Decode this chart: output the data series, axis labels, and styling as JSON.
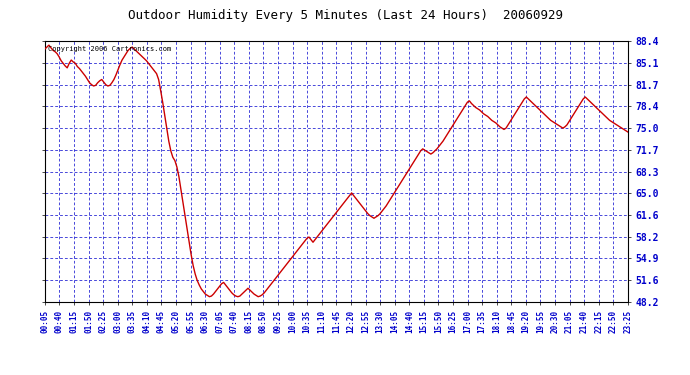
{
  "title": "Outdoor Humidity Every 5 Minutes (Last 24 Hours)  20060929",
  "copyright_text": "Copyright 2006 Cartronics.com",
  "background_color": "#ffffff",
  "plot_bg_color": "#ffffff",
  "line_color": "#cc0000",
  "grid_color": "#0000cc",
  "ytick_values": [
    48.2,
    51.6,
    54.9,
    58.2,
    61.6,
    65.0,
    68.3,
    71.7,
    75.0,
    78.4,
    81.7,
    85.1,
    88.4
  ],
  "ylim": [
    48.2,
    88.4
  ],
  "xtick_labels": [
    "00:05",
    "00:40",
    "01:15",
    "01:50",
    "02:25",
    "03:00",
    "03:35",
    "04:10",
    "04:45",
    "05:20",
    "05:55",
    "06:30",
    "07:05",
    "07:40",
    "08:15",
    "08:50",
    "09:25",
    "10:00",
    "10:35",
    "11:10",
    "11:45",
    "12:20",
    "12:55",
    "13:30",
    "14:05",
    "14:40",
    "15:15",
    "15:50",
    "16:25",
    "17:00",
    "17:35",
    "18:10",
    "18:45",
    "19:20",
    "19:55",
    "20:30",
    "21:05",
    "21:40",
    "22:15",
    "22:50",
    "23:25"
  ],
  "humidity": [
    87.2,
    87.5,
    87.8,
    87.4,
    87.0,
    86.8,
    86.5,
    86.0,
    85.4,
    85.0,
    84.6,
    84.3,
    85.0,
    85.5,
    85.2,
    85.0,
    84.5,
    84.2,
    83.8,
    83.4,
    83.0,
    82.5,
    82.0,
    81.7,
    81.5,
    81.6,
    82.0,
    82.3,
    82.5,
    82.1,
    81.7,
    81.5,
    81.6,
    82.0,
    82.5,
    83.2,
    84.0,
    84.8,
    85.5,
    86.0,
    86.5,
    87.0,
    87.3,
    87.5,
    87.2,
    86.9,
    86.6,
    86.3,
    86.0,
    85.7,
    85.4,
    85.0,
    84.6,
    84.2,
    83.8,
    83.4,
    82.5,
    80.8,
    79.0,
    77.0,
    75.0,
    73.0,
    71.5,
    70.5,
    70.0,
    69.0,
    67.5,
    65.5,
    63.5,
    61.5,
    59.5,
    57.5,
    55.5,
    53.8,
    52.5,
    51.5,
    50.8,
    50.2,
    49.8,
    49.4,
    49.2,
    49.0,
    49.1,
    49.4,
    49.8,
    50.2,
    50.6,
    51.0,
    51.2,
    50.8,
    50.4,
    50.0,
    49.6,
    49.3,
    49.1,
    49.0,
    49.1,
    49.4,
    49.7,
    50.0,
    50.3,
    50.0,
    49.7,
    49.4,
    49.2,
    49.0,
    49.1,
    49.3,
    49.6,
    50.0,
    50.4,
    50.8,
    51.2,
    51.6,
    52.0,
    52.4,
    52.8,
    53.2,
    53.6,
    54.0,
    54.4,
    54.8,
    55.2,
    55.6,
    56.0,
    56.4,
    56.8,
    57.2,
    57.6,
    58.0,
    58.2,
    57.8,
    57.4,
    57.8,
    58.2,
    58.6,
    59.0,
    59.4,
    59.8,
    60.2,
    60.6,
    61.0,
    61.4,
    61.8,
    62.2,
    62.6,
    63.0,
    63.4,
    63.8,
    64.2,
    64.6,
    65.0,
    64.6,
    64.2,
    63.8,
    63.4,
    63.0,
    62.6,
    62.2,
    61.8,
    61.5,
    61.3,
    61.1,
    61.3,
    61.5,
    61.8,
    62.2,
    62.6,
    63.0,
    63.5,
    64.0,
    64.5,
    65.0,
    65.5,
    66.0,
    66.5,
    67.0,
    67.5,
    68.0,
    68.5,
    69.0,
    69.5,
    70.0,
    70.5,
    71.0,
    71.5,
    71.8,
    71.6,
    71.4,
    71.2,
    71.0,
    71.2,
    71.5,
    71.8,
    72.2,
    72.6,
    73.0,
    73.5,
    74.0,
    74.5,
    75.0,
    75.5,
    76.0,
    76.5,
    77.0,
    77.5,
    78.0,
    78.5,
    79.0,
    79.2,
    78.8,
    78.5,
    78.2,
    78.0,
    77.8,
    77.5,
    77.2,
    77.0,
    76.8,
    76.5,
    76.2,
    76.0,
    75.8,
    75.5,
    75.2,
    75.0,
    74.8,
    75.0,
    75.5,
    76.0,
    76.5,
    77.0,
    77.5,
    78.0,
    78.5,
    79.0,
    79.5,
    79.8,
    79.5,
    79.2,
    78.9,
    78.6,
    78.3,
    78.0,
    77.7,
    77.4,
    77.1,
    76.8,
    76.5,
    76.2,
    76.0,
    75.8,
    75.6,
    75.4,
    75.2,
    75.0,
    75.2,
    75.5,
    76.0,
    76.5,
    77.0,
    77.5,
    78.0,
    78.5,
    79.0,
    79.5,
    79.8,
    79.5,
    79.2,
    78.9,
    78.6,
    78.3,
    78.0,
    77.7,
    77.4,
    77.1,
    76.8,
    76.5,
    76.2,
    76.0,
    75.8,
    75.6,
    75.4,
    75.2,
    75.0,
    74.8,
    74.6,
    74.4
  ]
}
